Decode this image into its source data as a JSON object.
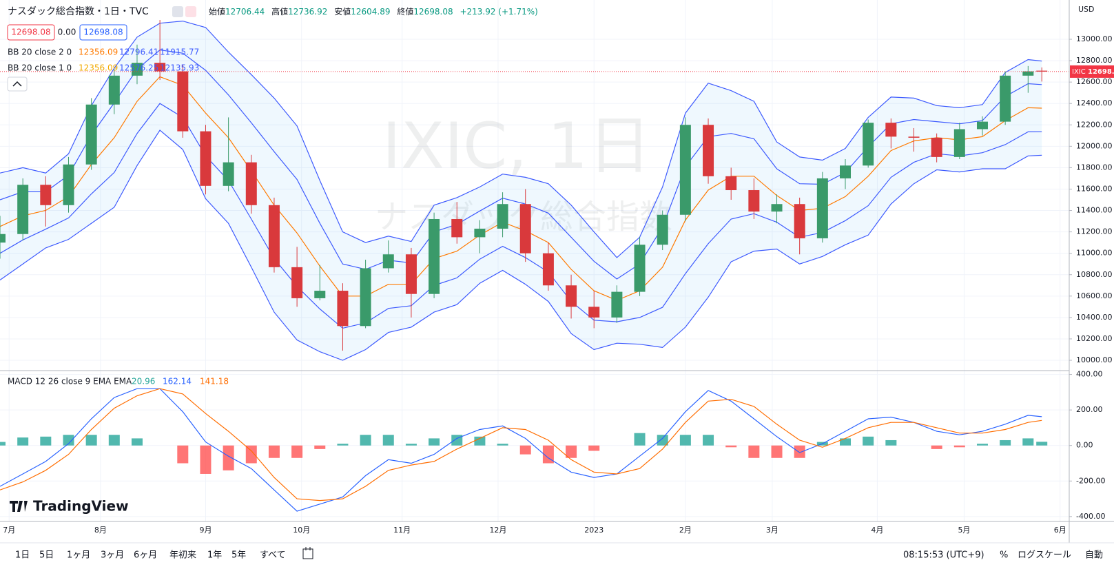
{
  "header": {
    "title": "ナスダック総合指数・1日・TVC",
    "open_label": "始値",
    "high_label": "高値",
    "low_label": "安値",
    "close_label": "終値",
    "change": "+213.92 (+1.71%)",
    "spread": "0.00",
    "symbol": "IXIC",
    "currency": "USD",
    "watermark": "IXIC, 1日",
    "watermark_sub": "ナスダック総合指数",
    "logo": "TradingView"
  },
  "toolbar": {
    "ranges": [
      "1日",
      "5日",
      "1ヶ月",
      "3ヶ月",
      "6ヶ月",
      "年初来",
      "1年",
      "5年",
      "すべて"
    ],
    "time": "08:15:53 (UTC+9)",
    "percent": "%",
    "log": "ログスケール",
    "auto": "自動"
  },
  "chart_data": [
    {
      "type": "candlestick",
      "up_color": "#3a9a6a",
      "down_color": "#d9393c",
      "x": [
        0,
        5,
        10,
        15,
        20,
        25,
        30,
        35,
        40,
        45,
        50,
        55,
        60,
        65,
        70,
        75,
        80,
        85,
        90,
        95,
        100,
        105,
        110,
        115,
        120,
        125,
        130,
        135,
        140,
        145,
        150,
        155,
        160,
        165,
        170,
        175,
        180,
        185,
        190,
        195,
        200,
        205,
        210,
        215,
        220,
        225,
        228
      ],
      "open": [
        11100,
        11180,
        11640,
        11450,
        11830,
        12390,
        12660,
        12780,
        12700,
        12140,
        11630,
        11850,
        11450,
        10870,
        10580,
        10650,
        10320,
        10860,
        10990,
        10620,
        11320,
        11150,
        11230,
        11460,
        11000,
        10700,
        10500,
        10400,
        10640,
        11080,
        11360,
        12200,
        11720,
        11590,
        11390,
        11460,
        11140,
        11700,
        11820,
        12220,
        12090,
        12080,
        11900,
        12160,
        12230,
        12660,
        12706.44
      ],
      "high": [
        11350,
        11700,
        11720,
        11900,
        12450,
        12720,
        12950,
        13180,
        12760,
        12200,
        12270,
        11920,
        11520,
        11060,
        10890,
        10720,
        10940,
        11120,
        11050,
        11380,
        11480,
        11310,
        11570,
        11600,
        11100,
        10800,
        10650,
        10700,
        11150,
        11400,
        12270,
        12260,
        11800,
        11700,
        11550,
        11520,
        11760,
        11880,
        12250,
        12260,
        12170,
        12120,
        12220,
        12280,
        12700,
        12750,
        12736.92
      ],
      "low": [
        10950,
        11120,
        11250,
        11380,
        11780,
        12300,
        12580,
        12620,
        12080,
        11550,
        11580,
        11370,
        10820,
        10500,
        10560,
        10090,
        10300,
        10820,
        10400,
        10580,
        11090,
        11000,
        11150,
        10920,
        10650,
        10390,
        10300,
        10350,
        10600,
        11030,
        11300,
        11650,
        11500,
        11320,
        11280,
        10990,
        11100,
        11600,
        11800,
        11980,
        11950,
        11850,
        11880,
        12100,
        12200,
        12500,
        12604.89
      ],
      "close": [
        11180,
        11640,
        11450,
        11830,
        12390,
        12660,
        12780,
        12700,
        12140,
        11630,
        11850,
        11450,
        10870,
        10580,
        10650,
        10320,
        10860,
        10990,
        10620,
        11320,
        11150,
        11230,
        11460,
        11000,
        10700,
        10500,
        10400,
        10640,
        11080,
        11360,
        12200,
        11720,
        11590,
        11390,
        11460,
        11140,
        11700,
        11820,
        12220,
        12090,
        12080,
        11900,
        12160,
        12230,
        12660,
        12700,
        12698.08
      ],
      "bollinger": [
        {
          "name": "BB 20 close 2 0",
          "color": "#3d5afe",
          "middle_color": "#ff7a00",
          "fill": "rgba(33,150,243,0.07)",
          "middle": [
            11250,
            11350,
            11400,
            11530,
            11830,
            12080,
            12420,
            12650,
            12570,
            12310,
            12080,
            11770,
            11450,
            11190,
            10880,
            10600,
            10600,
            10710,
            10710,
            10950,
            11020,
            11170,
            11290,
            11210,
            11100,
            10850,
            10650,
            10560,
            10650,
            10870,
            11310,
            11590,
            11720,
            11720,
            11540,
            11400,
            11420,
            11530,
            11720,
            11960,
            12050,
            12080,
            12060,
            12090,
            12240,
            12360,
            12356.09
          ],
          "upper": [
            11750,
            11800,
            11750,
            11930,
            12380,
            12730,
            13020,
            13150,
            13170,
            13110,
            12880,
            12670,
            12450,
            12190,
            11680,
            11200,
            11100,
            11160,
            11110,
            11450,
            11520,
            11620,
            11740,
            11710,
            11650,
            11450,
            11200,
            10960,
            11150,
            11620,
            12310,
            12590,
            12520,
            12420,
            12040,
            11900,
            11870,
            11980,
            12270,
            12460,
            12450,
            12380,
            12360,
            12390,
            12690,
            12810,
            12796.41
          ],
          "lower": [
            10750,
            10900,
            11050,
            11130,
            11280,
            11430,
            11820,
            12150,
            11970,
            11510,
            11280,
            10870,
            10450,
            10190,
            10080,
            10000,
            10100,
            10260,
            10310,
            10450,
            10520,
            10720,
            10840,
            10710,
            10550,
            10250,
            10100,
            10160,
            10150,
            10120,
            10310,
            10590,
            10920,
            11020,
            11040,
            10900,
            10970,
            11080,
            11170,
            11460,
            11650,
            11780,
            11760,
            11790,
            11790,
            11910,
            11915.77
          ]
        },
        {
          "name": "BB 20 close 1 0",
          "color": "#3d5afe",
          "middle_color": "#f2a900",
          "upper": [
            11500,
            11575,
            11575,
            11730,
            12105,
            12405,
            12720,
            12900,
            12870,
            12710,
            12480,
            12220,
            11950,
            11690,
            11280,
            10900,
            10850,
            10935,
            10910,
            11200,
            11270,
            11395,
            11515,
            11460,
            11375,
            11150,
            10925,
            10760,
            10900,
            11245,
            11810,
            12090,
            12120,
            12070,
            11790,
            11650,
            11645,
            11755,
            11995,
            12210,
            12250,
            12230,
            12210,
            12240,
            12465,
            12585,
            12576.25
          ],
          "lower": [
            11000,
            11125,
            11225,
            11330,
            11555,
            11755,
            12120,
            12400,
            12270,
            11910,
            11680,
            11320,
            10950,
            10690,
            10480,
            10300,
            10350,
            10485,
            10510,
            10700,
            10770,
            10945,
            11065,
            10960,
            10825,
            10550,
            10375,
            10360,
            10400,
            10495,
            10810,
            11090,
            11320,
            11370,
            11290,
            11150,
            11195,
            11305,
            11445,
            11710,
            11850,
            11930,
            11910,
            11940,
            12015,
            12135,
            12135.93
          ]
        }
      ],
      "xlim": [
        0,
        234
      ],
      "xticks": [
        {
          "value": 2,
          "label": "7月"
        },
        {
          "value": 22,
          "label": "8月"
        },
        {
          "value": 45,
          "label": "9月"
        },
        {
          "value": 66,
          "label": "10月"
        },
        {
          "value": 88,
          "label": "11月"
        },
        {
          "value": 109,
          "label": "12月"
        },
        {
          "value": 130,
          "label": "2023"
        },
        {
          "value": 150,
          "label": "2月"
        },
        {
          "value": 169,
          "label": "3月"
        },
        {
          "value": 192,
          "label": "4月"
        },
        {
          "value": 211,
          "label": "5月"
        },
        {
          "value": 232,
          "label": "6月"
        }
      ],
      "ylim": [
        9910,
        13367
      ],
      "yticks": [
        {
          "value": 10000,
          "label": "10000.00"
        },
        {
          "value": 10200,
          "label": "10200.00"
        },
        {
          "value": 10400,
          "label": "10400.00"
        },
        {
          "value": 10600,
          "label": "10600.00"
        },
        {
          "value": 10800,
          "label": "10800.00"
        },
        {
          "value": 11000,
          "label": "11000.00"
        },
        {
          "value": 11200,
          "label": "11200.00"
        },
        {
          "value": 11400,
          "label": "11400.00"
        },
        {
          "value": 11600,
          "label": "11600.00"
        },
        {
          "value": 11800,
          "label": "11800.00"
        },
        {
          "value": 12000,
          "label": "12000.00"
        },
        {
          "value": 12200,
          "label": "12200.00"
        },
        {
          "value": 12400,
          "label": "12400.00"
        },
        {
          "value": 12600,
          "label": "12600.00"
        },
        {
          "value": 12800,
          "label": "12800.00"
        },
        {
          "value": 13000,
          "label": "13000.00"
        }
      ],
      "grid": true
    },
    {
      "type": "macd",
      "title": "MACD 12 26 close 9 EMA EMA",
      "x": [
        0,
        5,
        10,
        15,
        20,
        25,
        30,
        35,
        40,
        45,
        50,
        55,
        60,
        65,
        70,
        75,
        80,
        85,
        90,
        95,
        100,
        105,
        110,
        115,
        120,
        125,
        130,
        135,
        140,
        145,
        150,
        155,
        160,
        165,
        170,
        175,
        180,
        185,
        190,
        195,
        200,
        205,
        210,
        215,
        220,
        225,
        228
      ],
      "series": [
        {
          "name": "histogram",
          "color": "#26a69a",
          "negative_color": "#ff5252",
          "values": [
            20,
            45,
            50,
            60,
            60,
            60,
            40,
            0,
            -100,
            -160,
            -140,
            -100,
            -70,
            -70,
            -20,
            10,
            60,
            60,
            10,
            40,
            60,
            50,
            10,
            -50,
            -100,
            -70,
            -30,
            0,
            70,
            60,
            60,
            60,
            -10,
            -70,
            -70,
            -70,
            20,
            40,
            50,
            30,
            0,
            -20,
            -10,
            10,
            30,
            40,
            20.96
          ]
        },
        {
          "name": "macd",
          "color": "#2962ff",
          "values": [
            -230,
            -160,
            -90,
            10,
            150,
            270,
            320,
            320,
            190,
            20,
            -60,
            -130,
            -250,
            -370,
            -330,
            -290,
            -170,
            -80,
            -100,
            -50,
            40,
            90,
            110,
            40,
            -70,
            -150,
            -180,
            -160,
            -60,
            40,
            190,
            310,
            250,
            150,
            50,
            -40,
            10,
            80,
            150,
            160,
            130,
            80,
            60,
            80,
            120,
            170,
            162.14
          ]
        },
        {
          "name": "signal",
          "color": "#ff6d00",
          "values": [
            -250,
            -205,
            -140,
            -50,
            90,
            210,
            280,
            320,
            290,
            180,
            80,
            -30,
            -180,
            -300,
            -310,
            -300,
            -230,
            -140,
            -110,
            -90,
            -20,
            40,
            100,
            90,
            30,
            -80,
            -150,
            -160,
            -130,
            -20,
            130,
            250,
            260,
            220,
            120,
            30,
            -10,
            40,
            100,
            130,
            130,
            100,
            70,
            70,
            90,
            130,
            141.18
          ]
        }
      ],
      "xlim": [
        0,
        234
      ],
      "ylim": [
        -420,
        410
      ],
      "yticks": [
        {
          "value": -400,
          "label": "-400.00"
        },
        {
          "value": -200,
          "label": "-200.00"
        },
        {
          "value": 0,
          "label": "0.00"
        },
        {
          "value": 200,
          "label": "200.00"
        },
        {
          "value": 400,
          "label": "400.00"
        }
      ],
      "grid": true
    }
  ]
}
